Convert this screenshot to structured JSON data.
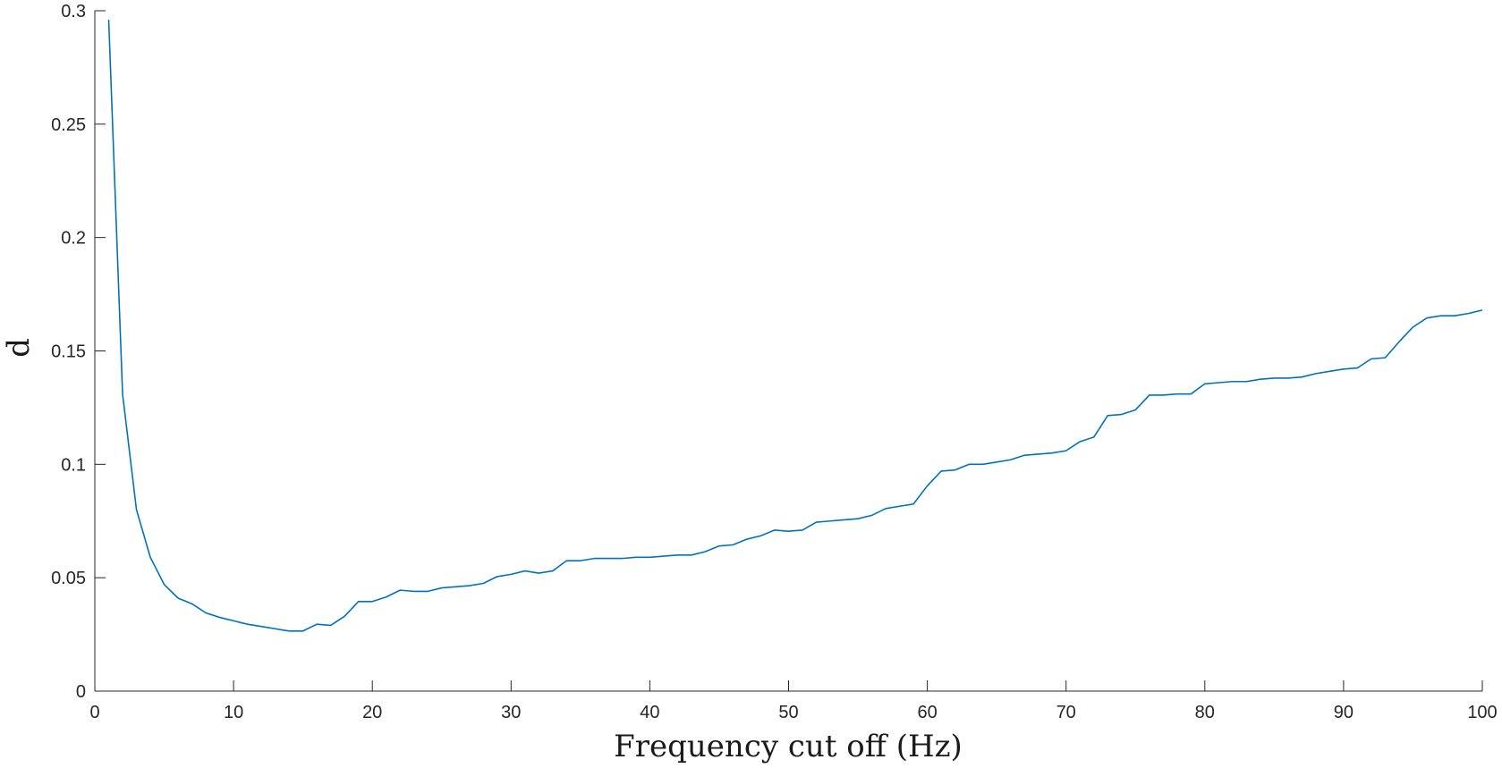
{
  "chart_data": {
    "type": "line",
    "title": "",
    "xlabel": "Frequency cut off (Hz)",
    "ylabel": "d",
    "xlim": [
      0,
      100
    ],
    "ylim": [
      0,
      0.3
    ],
    "grid": false,
    "x_ticks": [
      "0",
      "10",
      "20",
      "30",
      "40",
      "50",
      "60",
      "70",
      "80",
      "90",
      "100"
    ],
    "y_ticks": [
      "0",
      "0.05",
      "0.1",
      "0.15",
      "0.2",
      "0.25",
      "0.3"
    ],
    "series": [
      {
        "color": "#0072bd",
        "x": [
          1,
          2,
          3,
          4,
          5,
          6,
          7,
          8,
          9,
          10,
          11,
          12,
          13,
          14,
          15,
          16,
          17,
          18,
          19,
          20,
          21,
          22,
          23,
          24,
          25,
          26,
          27,
          28,
          29,
          30,
          31,
          32,
          33,
          34,
          35,
          36,
          37,
          38,
          39,
          40,
          41,
          42,
          43,
          44,
          45,
          46,
          47,
          48,
          49,
          50,
          51,
          52,
          53,
          54,
          55,
          56,
          57,
          58,
          59,
          60,
          61,
          62,
          63,
          64,
          65,
          66,
          67,
          68,
          69,
          70,
          71,
          72,
          73,
          74,
          75,
          76,
          77,
          78,
          79,
          80,
          81,
          82,
          83,
          84,
          85,
          86,
          87,
          88,
          89,
          90,
          91,
          92,
          93,
          94,
          95,
          96,
          97,
          98,
          99,
          100
        ],
        "y": [
          0.296,
          0.131,
          0.08,
          0.059,
          0.047,
          0.041,
          0.0385,
          0.0345,
          0.0325,
          0.031,
          0.0295,
          0.0285,
          0.0275,
          0.0265,
          0.0265,
          0.0295,
          0.029,
          0.033,
          0.0395,
          0.0395,
          0.0415,
          0.0445,
          0.044,
          0.044,
          0.0455,
          0.046,
          0.0465,
          0.0475,
          0.0505,
          0.0515,
          0.053,
          0.052,
          0.053,
          0.0575,
          0.0575,
          0.0585,
          0.0585,
          0.0585,
          0.059,
          0.059,
          0.0595,
          0.06,
          0.06,
          0.0615,
          0.064,
          0.0645,
          0.067,
          0.0685,
          0.071,
          0.0705,
          0.071,
          0.0745,
          0.075,
          0.0755,
          0.076,
          0.0775,
          0.0805,
          0.0815,
          0.0825,
          0.0905,
          0.097,
          0.0975,
          0.1,
          0.1,
          0.101,
          0.102,
          0.104,
          0.1045,
          0.105,
          0.106,
          0.11,
          0.112,
          0.1215,
          0.122,
          0.124,
          0.1305,
          0.1305,
          0.131,
          0.131,
          0.1355,
          0.136,
          0.1365,
          0.1365,
          0.1375,
          0.138,
          0.138,
          0.1385,
          0.14,
          0.141,
          0.142,
          0.1425,
          0.1465,
          0.147,
          0.154,
          0.1605,
          0.1645,
          0.1655,
          0.1655,
          0.1665,
          0.168
        ]
      }
    ]
  }
}
